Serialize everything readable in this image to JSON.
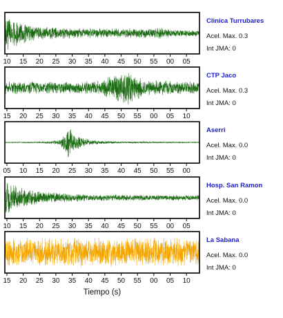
{
  "chart_data": [
    {
      "type": "line",
      "station": "Clinica Turrubares",
      "acel_label": "Acel. Max. 0.3",
      "jma_label": "Int JMA: 0",
      "x_tick_labels": [
        "10",
        "15",
        "20",
        "25",
        "30",
        "35",
        "40",
        "45",
        "50",
        "55",
        "00",
        "05"
      ],
      "color": "#1b6b12",
      "envelope": [
        [
          0,
          0.95
        ],
        [
          0.04,
          0.75
        ],
        [
          0.15,
          0.38
        ],
        [
          0.35,
          0.28
        ],
        [
          0.6,
          0.25
        ],
        [
          0.78,
          0.3
        ],
        [
          0.85,
          0.24
        ],
        [
          1,
          0.18
        ]
      ]
    },
    {
      "type": "line",
      "station": "CTP Jaco",
      "acel_label": "Acel. Max. 0.3",
      "jma_label": "Int JMA: 0",
      "x_tick_labels": [
        "15",
        "20",
        "25",
        "30",
        "35",
        "40",
        "45",
        "50",
        "55",
        "00",
        "05",
        "10"
      ],
      "color": "#1b6b12",
      "envelope": [
        [
          0,
          0.35
        ],
        [
          0.3,
          0.32
        ],
        [
          0.5,
          0.4
        ],
        [
          0.58,
          0.85
        ],
        [
          0.64,
          0.95
        ],
        [
          0.7,
          0.5
        ],
        [
          0.85,
          0.38
        ],
        [
          1,
          0.3
        ]
      ]
    },
    {
      "type": "line",
      "station": "Aserri",
      "acel_label": "Acel. Max. 0.0",
      "jma_label": "Int JMA: 0",
      "x_tick_labels": [
        "05",
        "10",
        "15",
        "20",
        "25",
        "30",
        "35",
        "40",
        "45",
        "50",
        "55",
        "00"
      ],
      "color": "#1b6b12",
      "envelope": [
        [
          0,
          0.02
        ],
        [
          0.18,
          0.03
        ],
        [
          0.28,
          0.12
        ],
        [
          0.31,
          0.55
        ],
        [
          0.325,
          0.98
        ],
        [
          0.36,
          0.45
        ],
        [
          0.45,
          0.12
        ],
        [
          0.6,
          0.05
        ],
        [
          1,
          0.02
        ]
      ]
    },
    {
      "type": "line",
      "station": "Hosp. San Ramon",
      "acel_label": "Acel. Max. 0.0",
      "jma_label": "Int JMA: 0",
      "x_tick_labels": [
        "10",
        "15",
        "20",
        "25",
        "30",
        "35",
        "40",
        "45",
        "50",
        "55",
        "00",
        "05"
      ],
      "color": "#1b6b12",
      "envelope": [
        [
          0,
          0.9
        ],
        [
          0.05,
          0.65
        ],
        [
          0.2,
          0.3
        ],
        [
          0.45,
          0.18
        ],
        [
          0.7,
          0.15
        ],
        [
          1,
          0.14
        ]
      ]
    },
    {
      "type": "line",
      "station": "La Sabana",
      "acel_label": "Acel. Max. 0.0",
      "jma_label": "Int JMA: 0",
      "x_tick_labels": [
        "15",
        "20",
        "25",
        "30",
        "35",
        "40",
        "45",
        "50",
        "55",
        "00",
        "05",
        "10"
      ],
      "color": "#f5a500",
      "envelope": [
        [
          0,
          0.78
        ],
        [
          0.5,
          0.8
        ],
        [
          1,
          0.78
        ]
      ]
    }
  ],
  "xlabel": "Tiempo (s)",
  "name_color": "#1c1ccc"
}
